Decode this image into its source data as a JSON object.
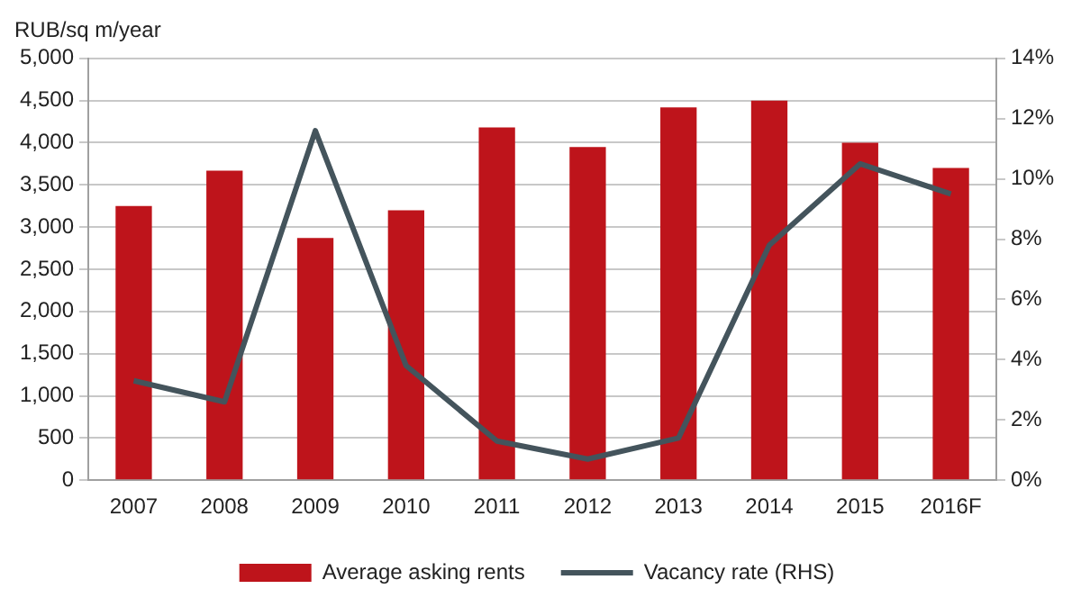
{
  "chart_data": {
    "type": "bar",
    "ylabel": "RUB/sq m/year",
    "categories": [
      "2007",
      "2008",
      "2009",
      "2010",
      "2011",
      "2012",
      "2013",
      "2014",
      "2015",
      "2016F"
    ],
    "series": [
      {
        "name": "Average asking rents",
        "color": "#be141b",
        "values": [
          3250,
          3670,
          2870,
          3200,
          4180,
          3950,
          4420,
          4500,
          4000,
          3700
        ]
      },
      {
        "name": "Vacancy rate (RHS)",
        "type": "line",
        "axis": "y2",
        "color": "#44545c",
        "marker": "none",
        "values": [
          3.3,
          2.6,
          11.6,
          3.8,
          1.3,
          0.7,
          1.4,
          7.8,
          10.5,
          9.5
        ]
      }
    ],
    "ylim": [
      0,
      5000
    ],
    "yticks": [
      {
        "value": 0,
        "label": "0"
      },
      {
        "value": 500,
        "label": "500"
      },
      {
        "value": 1000,
        "label": "1,000"
      },
      {
        "value": 1500,
        "label": "1,500"
      },
      {
        "value": 2000,
        "label": "2,000"
      },
      {
        "value": 2500,
        "label": "2,500"
      },
      {
        "value": 3000,
        "label": "3,000"
      },
      {
        "value": 3500,
        "label": "3,500"
      },
      {
        "value": 4000,
        "label": "4,000"
      },
      {
        "value": 4500,
        "label": "4,500"
      },
      {
        "value": 5000,
        "label": "5,000"
      }
    ],
    "y2lim": [
      0,
      14
    ],
    "y2ticks": [
      {
        "value": 0,
        "label": "0%"
      },
      {
        "value": 2,
        "label": "2%"
      },
      {
        "value": 4,
        "label": "4%"
      },
      {
        "value": 6,
        "label": "6%"
      },
      {
        "value": 8,
        "label": "8%"
      },
      {
        "value": 10,
        "label": "10%"
      },
      {
        "value": 12,
        "label": "12%"
      },
      {
        "value": 14,
        "label": "14%"
      }
    ],
    "grid": "y",
    "legend": "bottom"
  }
}
